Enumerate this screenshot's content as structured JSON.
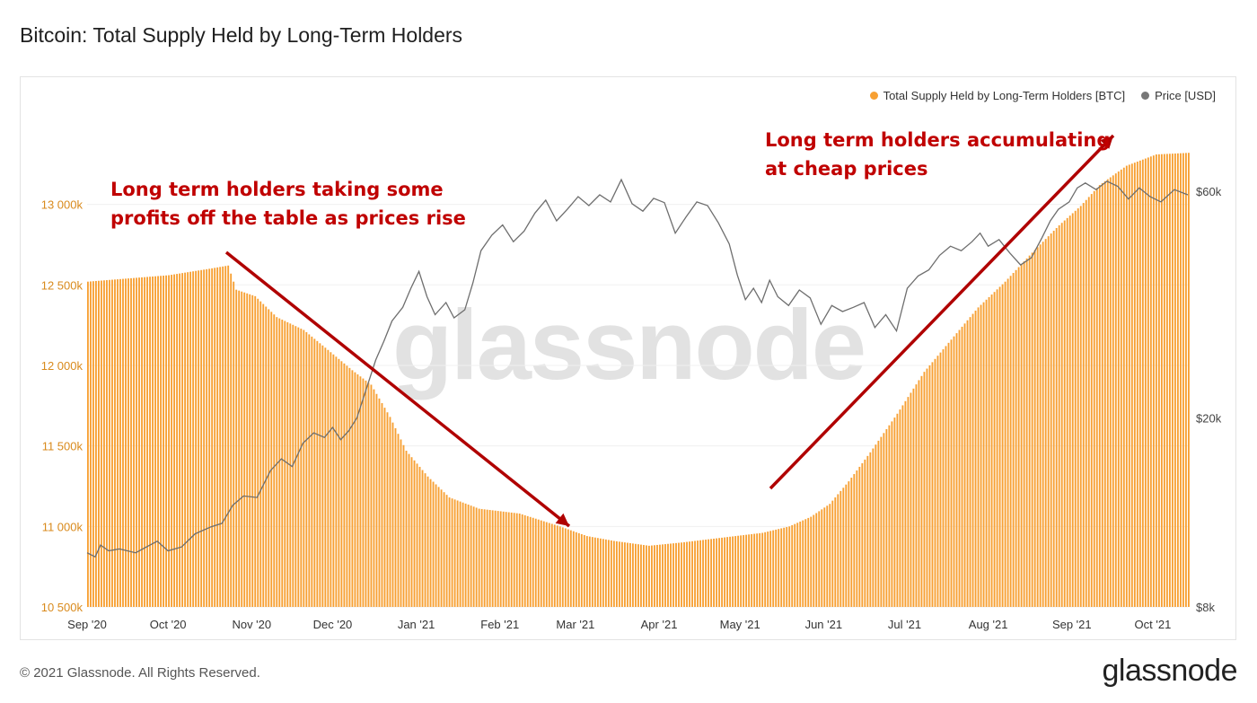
{
  "page": {
    "title": "Bitcoin: Total Supply Held by Long-Term Holders",
    "copyright": "© 2021 Glassnode. All Rights Reserved.",
    "logo": "glassnode",
    "watermark": "glassnode"
  },
  "legend": [
    {
      "label": "Total Supply Held by Long-Term Holders [BTC]",
      "color": "#f7a033"
    },
    {
      "label": "Price [USD]",
      "color": "#777777"
    }
  ],
  "annotations": {
    "left": [
      "Long term holders taking some",
      "profits off the table as prices rise"
    ],
    "right": [
      "Long term holders accumulating",
      "at cheap prices"
    ]
  },
  "colors": {
    "bars": "#f7a033",
    "price": "#6e6e6e",
    "arrow": "#b00000",
    "leftAxis": "#d98a1c"
  },
  "chart_data": {
    "type": "bar",
    "title": "Bitcoin: Total Supply Held by Long-Term Holders",
    "x_tick_labels": [
      "Sep '20",
      "Oct '20",
      "Nov '20",
      "Dec '20",
      "Jan '21",
      "Feb '21",
      "Mar '21",
      "Apr '21",
      "May '21",
      "Jun '21",
      "Jul '21",
      "Aug '21",
      "Sep '21",
      "Oct '21"
    ],
    "left_axis": {
      "label": "Total Supply Held by Long-Term Holders [BTC]",
      "ticks": [
        10500000,
        11000000,
        11500000,
        12000000,
        12500000,
        13000000
      ],
      "tick_labels": [
        "10 500k",
        "11 000k",
        "11 500k",
        "12 000k",
        "12 500k",
        "13 000k"
      ],
      "ylim": [
        10500000,
        13600000
      ]
    },
    "right_axis": {
      "label": "Price [USD]",
      "scale": "log",
      "ticks": [
        8000,
        20000,
        60000
      ],
      "tick_labels": [
        "$8k",
        "$20k",
        "$60k"
      ],
      "ylim": [
        8000,
        90000
      ]
    },
    "series": [
      {
        "name": "Total Supply Held by Long-Term Holders [BTC]",
        "type": "bar",
        "points": [
          [
            0,
            12520000
          ],
          [
            15,
            12540000
          ],
          [
            30,
            12560000
          ],
          [
            45,
            12600000
          ],
          [
            52,
            12620000
          ],
          [
            55,
            12470000
          ],
          [
            62,
            12430000
          ],
          [
            70,
            12300000
          ],
          [
            80,
            12220000
          ],
          [
            88,
            12110000
          ],
          [
            98,
            11970000
          ],
          [
            105,
            11880000
          ],
          [
            112,
            11680000
          ],
          [
            118,
            11470000
          ],
          [
            126,
            11310000
          ],
          [
            134,
            11180000
          ],
          [
            145,
            11110000
          ],
          [
            160,
            11080000
          ],
          [
            175,
            11000000
          ],
          [
            185,
            10940000
          ],
          [
            195,
            10910000
          ],
          [
            208,
            10880000
          ],
          [
            220,
            10900000
          ],
          [
            235,
            10930000
          ],
          [
            250,
            10960000
          ],
          [
            260,
            11000000
          ],
          [
            268,
            11060000
          ],
          [
            275,
            11140000
          ],
          [
            282,
            11280000
          ],
          [
            290,
            11460000
          ],
          [
            300,
            11700000
          ],
          [
            310,
            11960000
          ],
          [
            320,
            12160000
          ],
          [
            330,
            12360000
          ],
          [
            340,
            12520000
          ],
          [
            350,
            12700000
          ],
          [
            360,
            12870000
          ],
          [
            368,
            12990000
          ],
          [
            375,
            13120000
          ],
          [
            385,
            13240000
          ],
          [
            396,
            13310000
          ],
          [
            408,
            13320000
          ]
        ]
      },
      {
        "name": "Price [USD]",
        "type": "line",
        "points": [
          [
            0,
            10400
          ],
          [
            3,
            10200
          ],
          [
            5,
            10800
          ],
          [
            8,
            10500
          ],
          [
            12,
            10600
          ],
          [
            18,
            10400
          ],
          [
            22,
            10700
          ],
          [
            26,
            11000
          ],
          [
            30,
            10500
          ],
          [
            35,
            10700
          ],
          [
            40,
            11400
          ],
          [
            46,
            11800
          ],
          [
            50,
            12000
          ],
          [
            54,
            13100
          ],
          [
            58,
            13700
          ],
          [
            63,
            13600
          ],
          [
            68,
            15500
          ],
          [
            72,
            16400
          ],
          [
            76,
            15800
          ],
          [
            80,
            17700
          ],
          [
            84,
            18600
          ],
          [
            88,
            18200
          ],
          [
            91,
            19100
          ],
          [
            94,
            18000
          ],
          [
            97,
            18800
          ],
          [
            100,
            20000
          ],
          [
            104,
            23500
          ],
          [
            107,
            26500
          ],
          [
            110,
            29000
          ],
          [
            113,
            32000
          ],
          [
            117,
            34200
          ],
          [
            120,
            37500
          ],
          [
            123,
            40700
          ],
          [
            126,
            36000
          ],
          [
            129,
            33000
          ],
          [
            133,
            35000
          ],
          [
            136,
            32500
          ],
          [
            140,
            33800
          ],
          [
            143,
            38500
          ],
          [
            146,
            45000
          ],
          [
            150,
            48500
          ],
          [
            154,
            51000
          ],
          [
            158,
            47000
          ],
          [
            162,
            49500
          ],
          [
            166,
            54000
          ],
          [
            170,
            57500
          ],
          [
            174,
            52000
          ],
          [
            178,
            55000
          ],
          [
            182,
            58500
          ],
          [
            186,
            56000
          ],
          [
            190,
            59000
          ],
          [
            194,
            57000
          ],
          [
            198,
            63500
          ],
          [
            202,
            56500
          ],
          [
            206,
            54500
          ],
          [
            210,
            58000
          ],
          [
            214,
            56800
          ],
          [
            218,
            49000
          ],
          [
            222,
            53000
          ],
          [
            226,
            57000
          ],
          [
            230,
            56000
          ],
          [
            234,
            51500
          ],
          [
            238,
            46500
          ],
          [
            241,
            40000
          ],
          [
            244,
            35500
          ],
          [
            247,
            37500
          ],
          [
            250,
            35000
          ],
          [
            253,
            39000
          ],
          [
            256,
            36000
          ],
          [
            260,
            34500
          ],
          [
            264,
            37200
          ],
          [
            268,
            35800
          ],
          [
            272,
            31500
          ],
          [
            276,
            34500
          ],
          [
            280,
            33500
          ],
          [
            284,
            34200
          ],
          [
            288,
            35000
          ],
          [
            292,
            31000
          ],
          [
            296,
            33000
          ],
          [
            300,
            30500
          ],
          [
            304,
            37500
          ],
          [
            308,
            39800
          ],
          [
            312,
            41000
          ],
          [
            316,
            44000
          ],
          [
            320,
            46000
          ],
          [
            324,
            45000
          ],
          [
            328,
            47000
          ],
          [
            331,
            49000
          ],
          [
            334,
            46000
          ],
          [
            338,
            47500
          ],
          [
            342,
            44500
          ],
          [
            346,
            42000
          ],
          [
            350,
            43500
          ],
          [
            354,
            48000
          ],
          [
            357,
            52000
          ],
          [
            360,
            55000
          ],
          [
            364,
            57000
          ],
          [
            367,
            61000
          ],
          [
            370,
            62500
          ],
          [
            374,
            60500
          ],
          [
            378,
            63000
          ],
          [
            382,
            61500
          ],
          [
            386,
            57800
          ],
          [
            390,
            61000
          ],
          [
            394,
            58500
          ],
          [
            398,
            57000
          ],
          [
            403,
            60500
          ],
          [
            408,
            59000
          ]
        ]
      }
    ]
  }
}
